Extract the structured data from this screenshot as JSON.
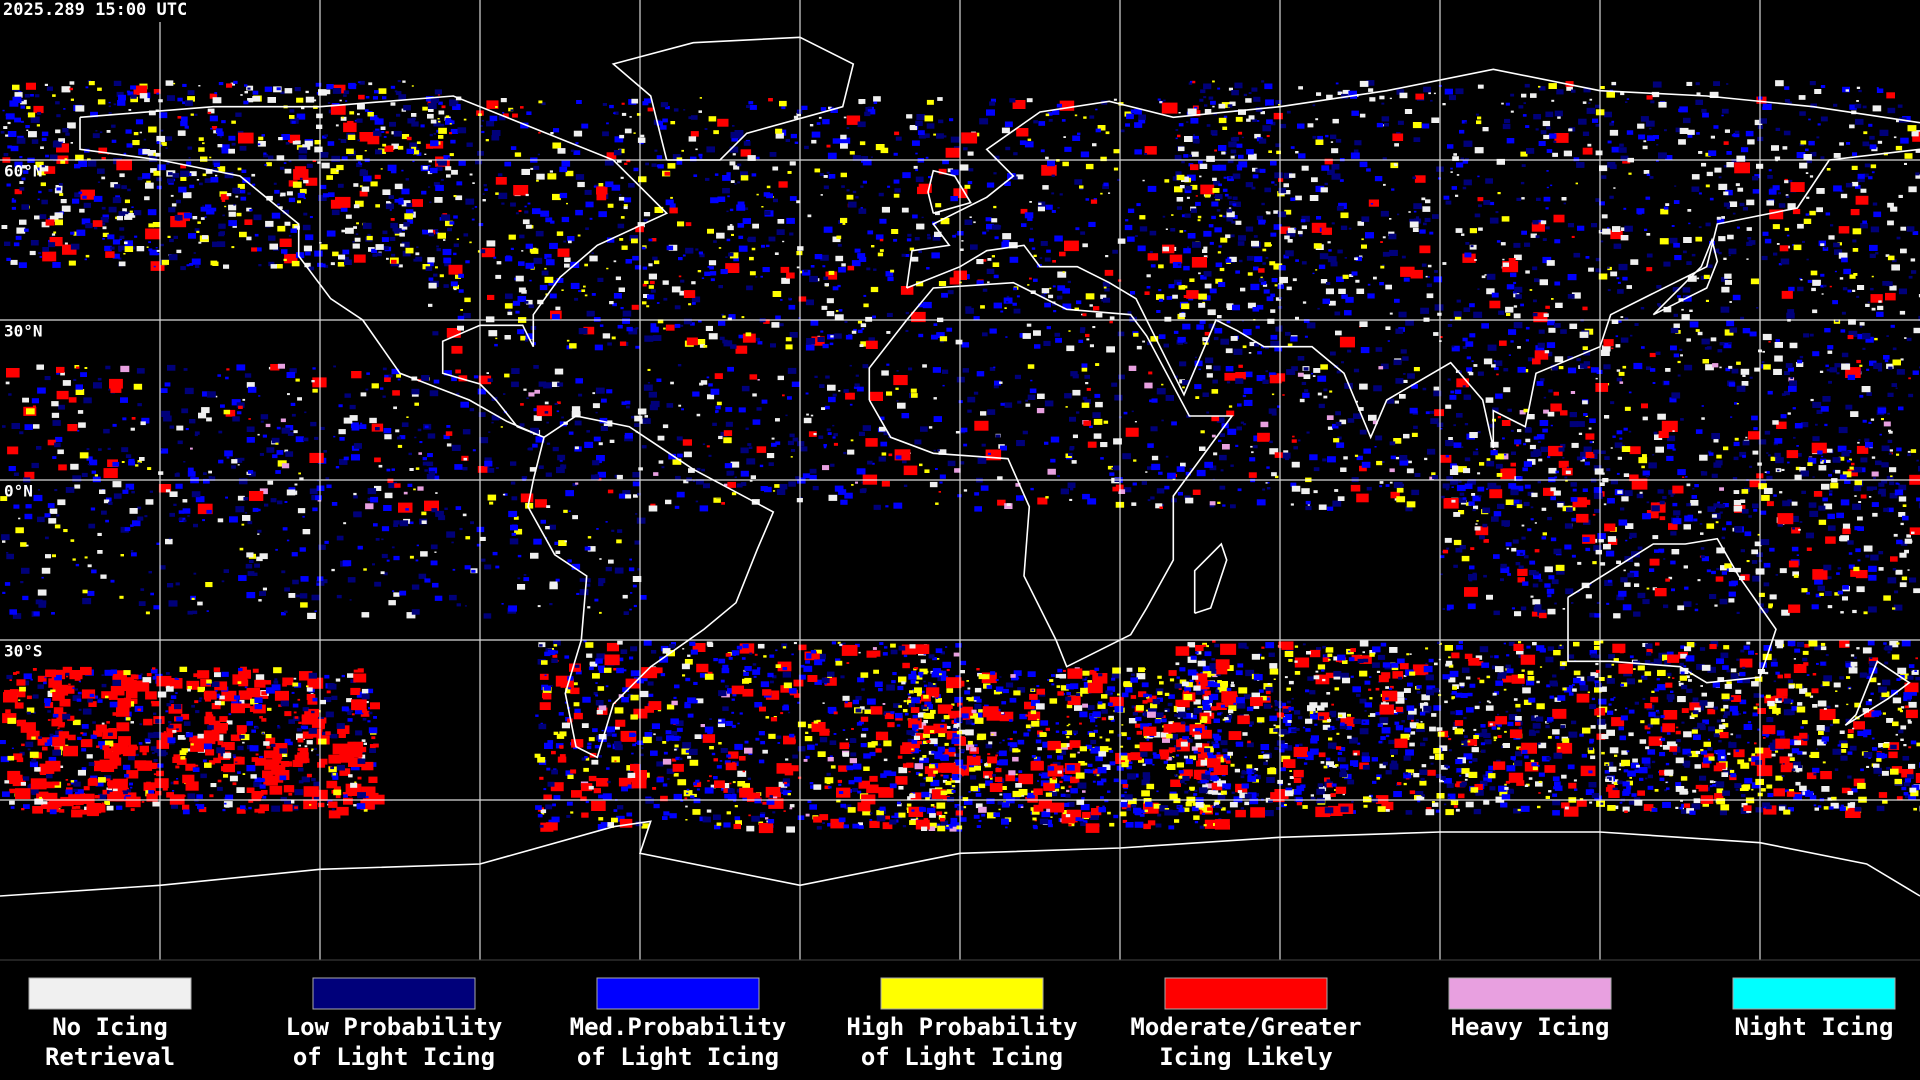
{
  "timestamp": "2025.289 15:00 UTC",
  "lat_labels": [
    "60°N",
    "30°N",
    "0°N",
    "30°S"
  ],
  "legend": [
    {
      "label_lines": [
        "No Icing",
        "Retrieval"
      ],
      "color": "#f0f0f0"
    },
    {
      "label_lines": [
        "Low Probability",
        "of Light Icing"
      ],
      "color": "#00007a"
    },
    {
      "label_lines": [
        "Med.Probability",
        "of Light Icing"
      ],
      "color": "#0000ff"
    },
    {
      "label_lines": [
        "High Probability",
        "of Light Icing"
      ],
      "color": "#ffff00"
    },
    {
      "label_lines": [
        "Moderate/Greater",
        "Icing Likely"
      ],
      "color": "#ff0000"
    },
    {
      "label_lines": [
        "Heavy Icing"
      ],
      "color": "#e8a0e0"
    },
    {
      "label_lines": [
        "Night Icing"
      ],
      "color": "#00ffff"
    }
  ]
}
